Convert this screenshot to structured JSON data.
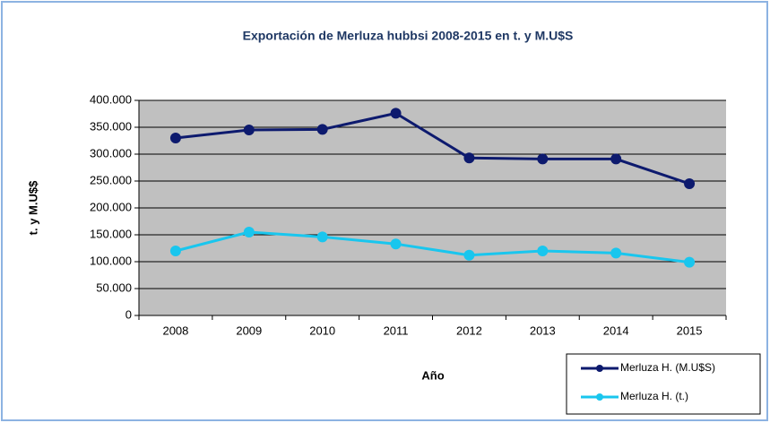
{
  "chart_data": {
    "type": "line",
    "title": "Exportación de Merluza hubbsi  2008-2015 en t. y M.U$S",
    "x_label": "Año",
    "y_label": "t. y M.U$$",
    "categories": [
      "2008",
      "2009",
      "2010",
      "2011",
      "2012",
      "2013",
      "2014",
      "2015"
    ],
    "series": [
      {
        "name": "Merluza H. (M.U$S)",
        "color": "#0d1a6e",
        "values": [
          330000,
          345000,
          346000,
          376000,
          293000,
          291000,
          291000,
          245000
        ]
      },
      {
        "name": "Merluza H. (t.)",
        "color": "#19c6ee",
        "values": [
          120000,
          155000,
          146000,
          133000,
          112000,
          120000,
          116000,
          99000
        ]
      }
    ],
    "ylim": [
      0,
      400000
    ],
    "yticks": [
      0,
      {
        "value": 50000,
        "label": "50.000"
      },
      {
        "value": 100000,
        "label": "100.000"
      },
      {
        "value": 150000,
        "label": "150.000"
      },
      {
        "value": 200000,
        "label": "200.000"
      },
      {
        "value": 250000,
        "label": "250.000"
      },
      {
        "value": 300000,
        "label": "300.000"
      },
      {
        "value": 350000,
        "label": "350.000"
      },
      {
        "value": 400000,
        "label": "400.000"
      }
    ],
    "grid": true,
    "legend": "lower right"
  }
}
